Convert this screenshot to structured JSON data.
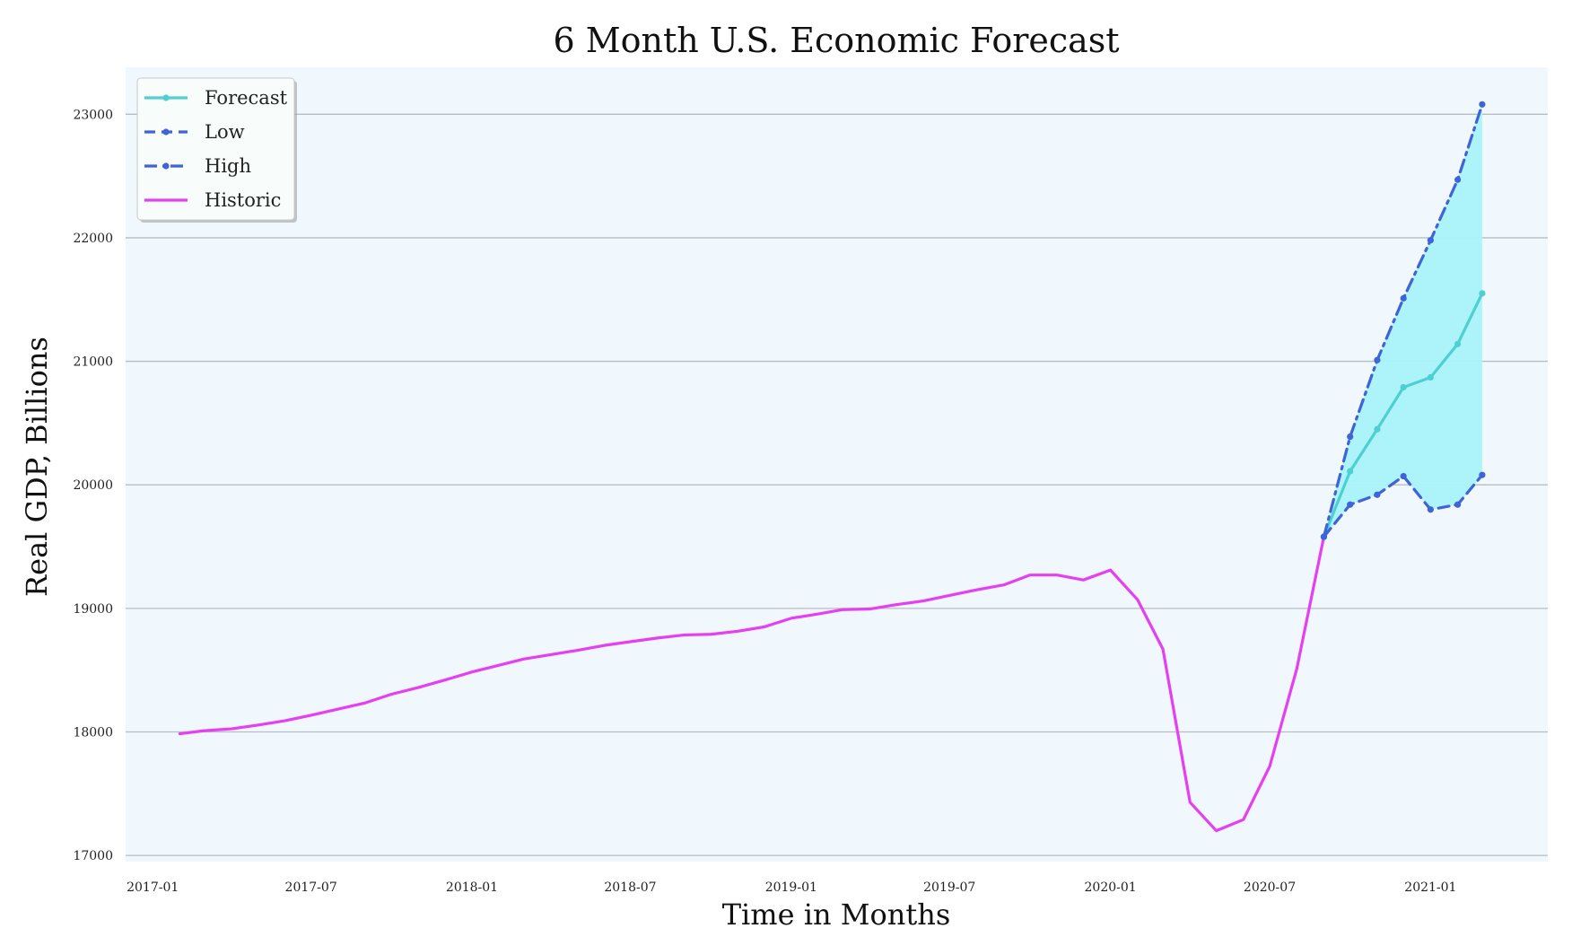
{
  "chart_data": {
    "type": "line",
    "title": "6 Month U.S. Economic Forecast",
    "xlabel": "Time in Months",
    "ylabel": "Real GDP, Billions",
    "xlim": [
      "2016-12-01",
      "2021-05-15"
    ],
    "ylim": [
      16950,
      23380
    ],
    "x_ticks": [
      "2017-01",
      "2017-07",
      "2018-01",
      "2018-07",
      "2019-01",
      "2019-07",
      "2020-01",
      "2020-07",
      "2021-01"
    ],
    "y_ticks": [
      17000,
      18000,
      19000,
      20000,
      21000,
      22000,
      23000
    ],
    "grid": "horizontal",
    "legend_position": "top-left",
    "colors": {
      "plot_background": "#f0f7fd",
      "forecast": "#4ecfd1",
      "low": "#3e64d8",
      "high": "#3e64d8",
      "historic": "#e63ff2",
      "band_fill": "#a9f3fa",
      "grid": "#b8bcc4"
    },
    "series": [
      {
        "name": "Historic",
        "style": "solid",
        "x": [
          "2017-02",
          "2017-03",
          "2017-04",
          "2017-05",
          "2017-06",
          "2017-07",
          "2017-08",
          "2017-09",
          "2017-10",
          "2017-11",
          "2017-12",
          "2018-01",
          "2018-02",
          "2018-03",
          "2018-04",
          "2018-05",
          "2018-06",
          "2018-07",
          "2018-08",
          "2018-09",
          "2018-10",
          "2018-11",
          "2018-12",
          "2019-01",
          "2019-02",
          "2019-03",
          "2019-04",
          "2019-05",
          "2019-06",
          "2019-07",
          "2019-08",
          "2019-09",
          "2019-10",
          "2019-11",
          "2019-12",
          "2020-01",
          "2020-02",
          "2020-03",
          "2020-04",
          "2020-05",
          "2020-06",
          "2020-07",
          "2020-08",
          "2020-09"
        ],
        "values": [
          17985,
          18010,
          18025,
          18055,
          18090,
          18135,
          18185,
          18235,
          18305,
          18360,
          18420,
          18485,
          18540,
          18590,
          18625,
          18660,
          18700,
          18730,
          18760,
          18785,
          18790,
          18815,
          18850,
          18920,
          18955,
          18990,
          18995,
          19030,
          19060,
          19105,
          19150,
          19190,
          19270,
          19270,
          19230,
          19310,
          19070,
          18670,
          17430,
          17200,
          17290,
          17720,
          18510,
          19580
        ]
      },
      {
        "name": "Forecast",
        "style": "solid",
        "markers": true,
        "x": [
          "2020-09",
          "2020-10",
          "2020-11",
          "2020-12",
          "2021-01",
          "2021-02",
          "2021-03"
        ],
        "values": [
          19580,
          20110,
          20450,
          20790,
          20870,
          21140,
          21550
        ]
      },
      {
        "name": "Low",
        "style": "dashed",
        "markers": true,
        "x": [
          "2020-09",
          "2020-10",
          "2020-11",
          "2020-12",
          "2021-01",
          "2021-02",
          "2021-03"
        ],
        "values": [
          19580,
          19840,
          19920,
          20070,
          19800,
          19840,
          20080
        ]
      },
      {
        "name": "High",
        "style": "dashdot",
        "markers": true,
        "x": [
          "2020-09",
          "2020-10",
          "2020-11",
          "2020-12",
          "2021-01",
          "2021-02",
          "2021-03"
        ],
        "values": [
          19580,
          20390,
          21010,
          21510,
          21980,
          22470,
          23080
        ]
      }
    ],
    "legend": [
      "Forecast",
      "Low",
      "High",
      "Historic"
    ]
  }
}
